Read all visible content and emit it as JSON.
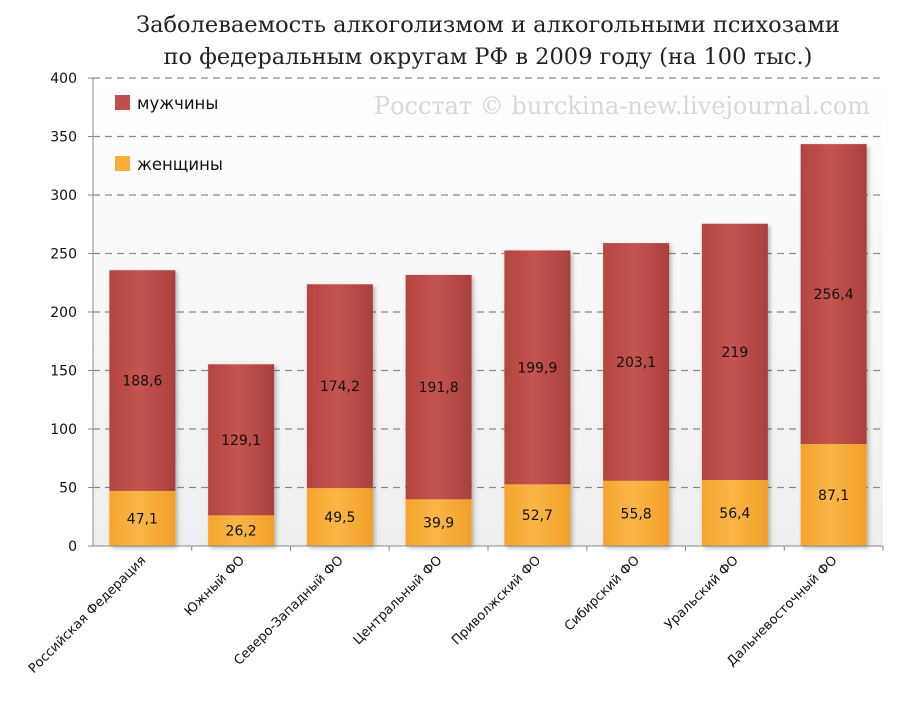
{
  "chart_data": {
    "type": "bar",
    "stacked": true,
    "title": "Заболеваемость алкоголизмом и алкогольными психозами по федеральным округам РФ  в 2009 году (на 100 тыс.)",
    "title_lines": [
      "Заболеваемость алкоголизмом и алкогольными психозами",
      "по федеральным округам РФ  в 2009 году (на 100 тыс.)"
    ],
    "watermark": "Росстат © burckina-new.livejournal.com",
    "categories": [
      "Российская Федерация",
      "Южный ФО",
      "Северо-Западный ФО",
      "Центральный ФО",
      "Приволжский ФО",
      "Сибирский ФО",
      "Уральский ФО",
      "Дальневосточный ФО"
    ],
    "series": [
      {
        "name": "женщины",
        "color": "#f9ae38",
        "values": [
          47.1,
          26.2,
          49.5,
          39.9,
          52.7,
          55.8,
          56.4,
          87.1
        ],
        "labels": [
          "47,1",
          "26,2",
          "49,5",
          "39,9",
          "52,7",
          "55,8",
          "56,4",
          "87,1"
        ]
      },
      {
        "name": "мужчины",
        "color": "#c0504d",
        "values": [
          188.6,
          129.1,
          174.2,
          191.8,
          199.9,
          203.1,
          219,
          256.4
        ],
        "labels": [
          "188,6",
          "129,1",
          "174,2",
          "191,8",
          "199,9",
          "203,1",
          "219",
          "256,4"
        ]
      }
    ],
    "legend": [
      {
        "name": "мужчины",
        "color": "#c0504d"
      },
      {
        "name": "женщины",
        "color": "#f9ae38"
      }
    ],
    "ylim": [
      0,
      400
    ],
    "yticks": [
      "0",
      "50",
      "100",
      "150",
      "200",
      "250",
      "300",
      "350",
      "400"
    ],
    "grid": true,
    "legend_position": "top-left",
    "xlabel": "",
    "ylabel": ""
  }
}
